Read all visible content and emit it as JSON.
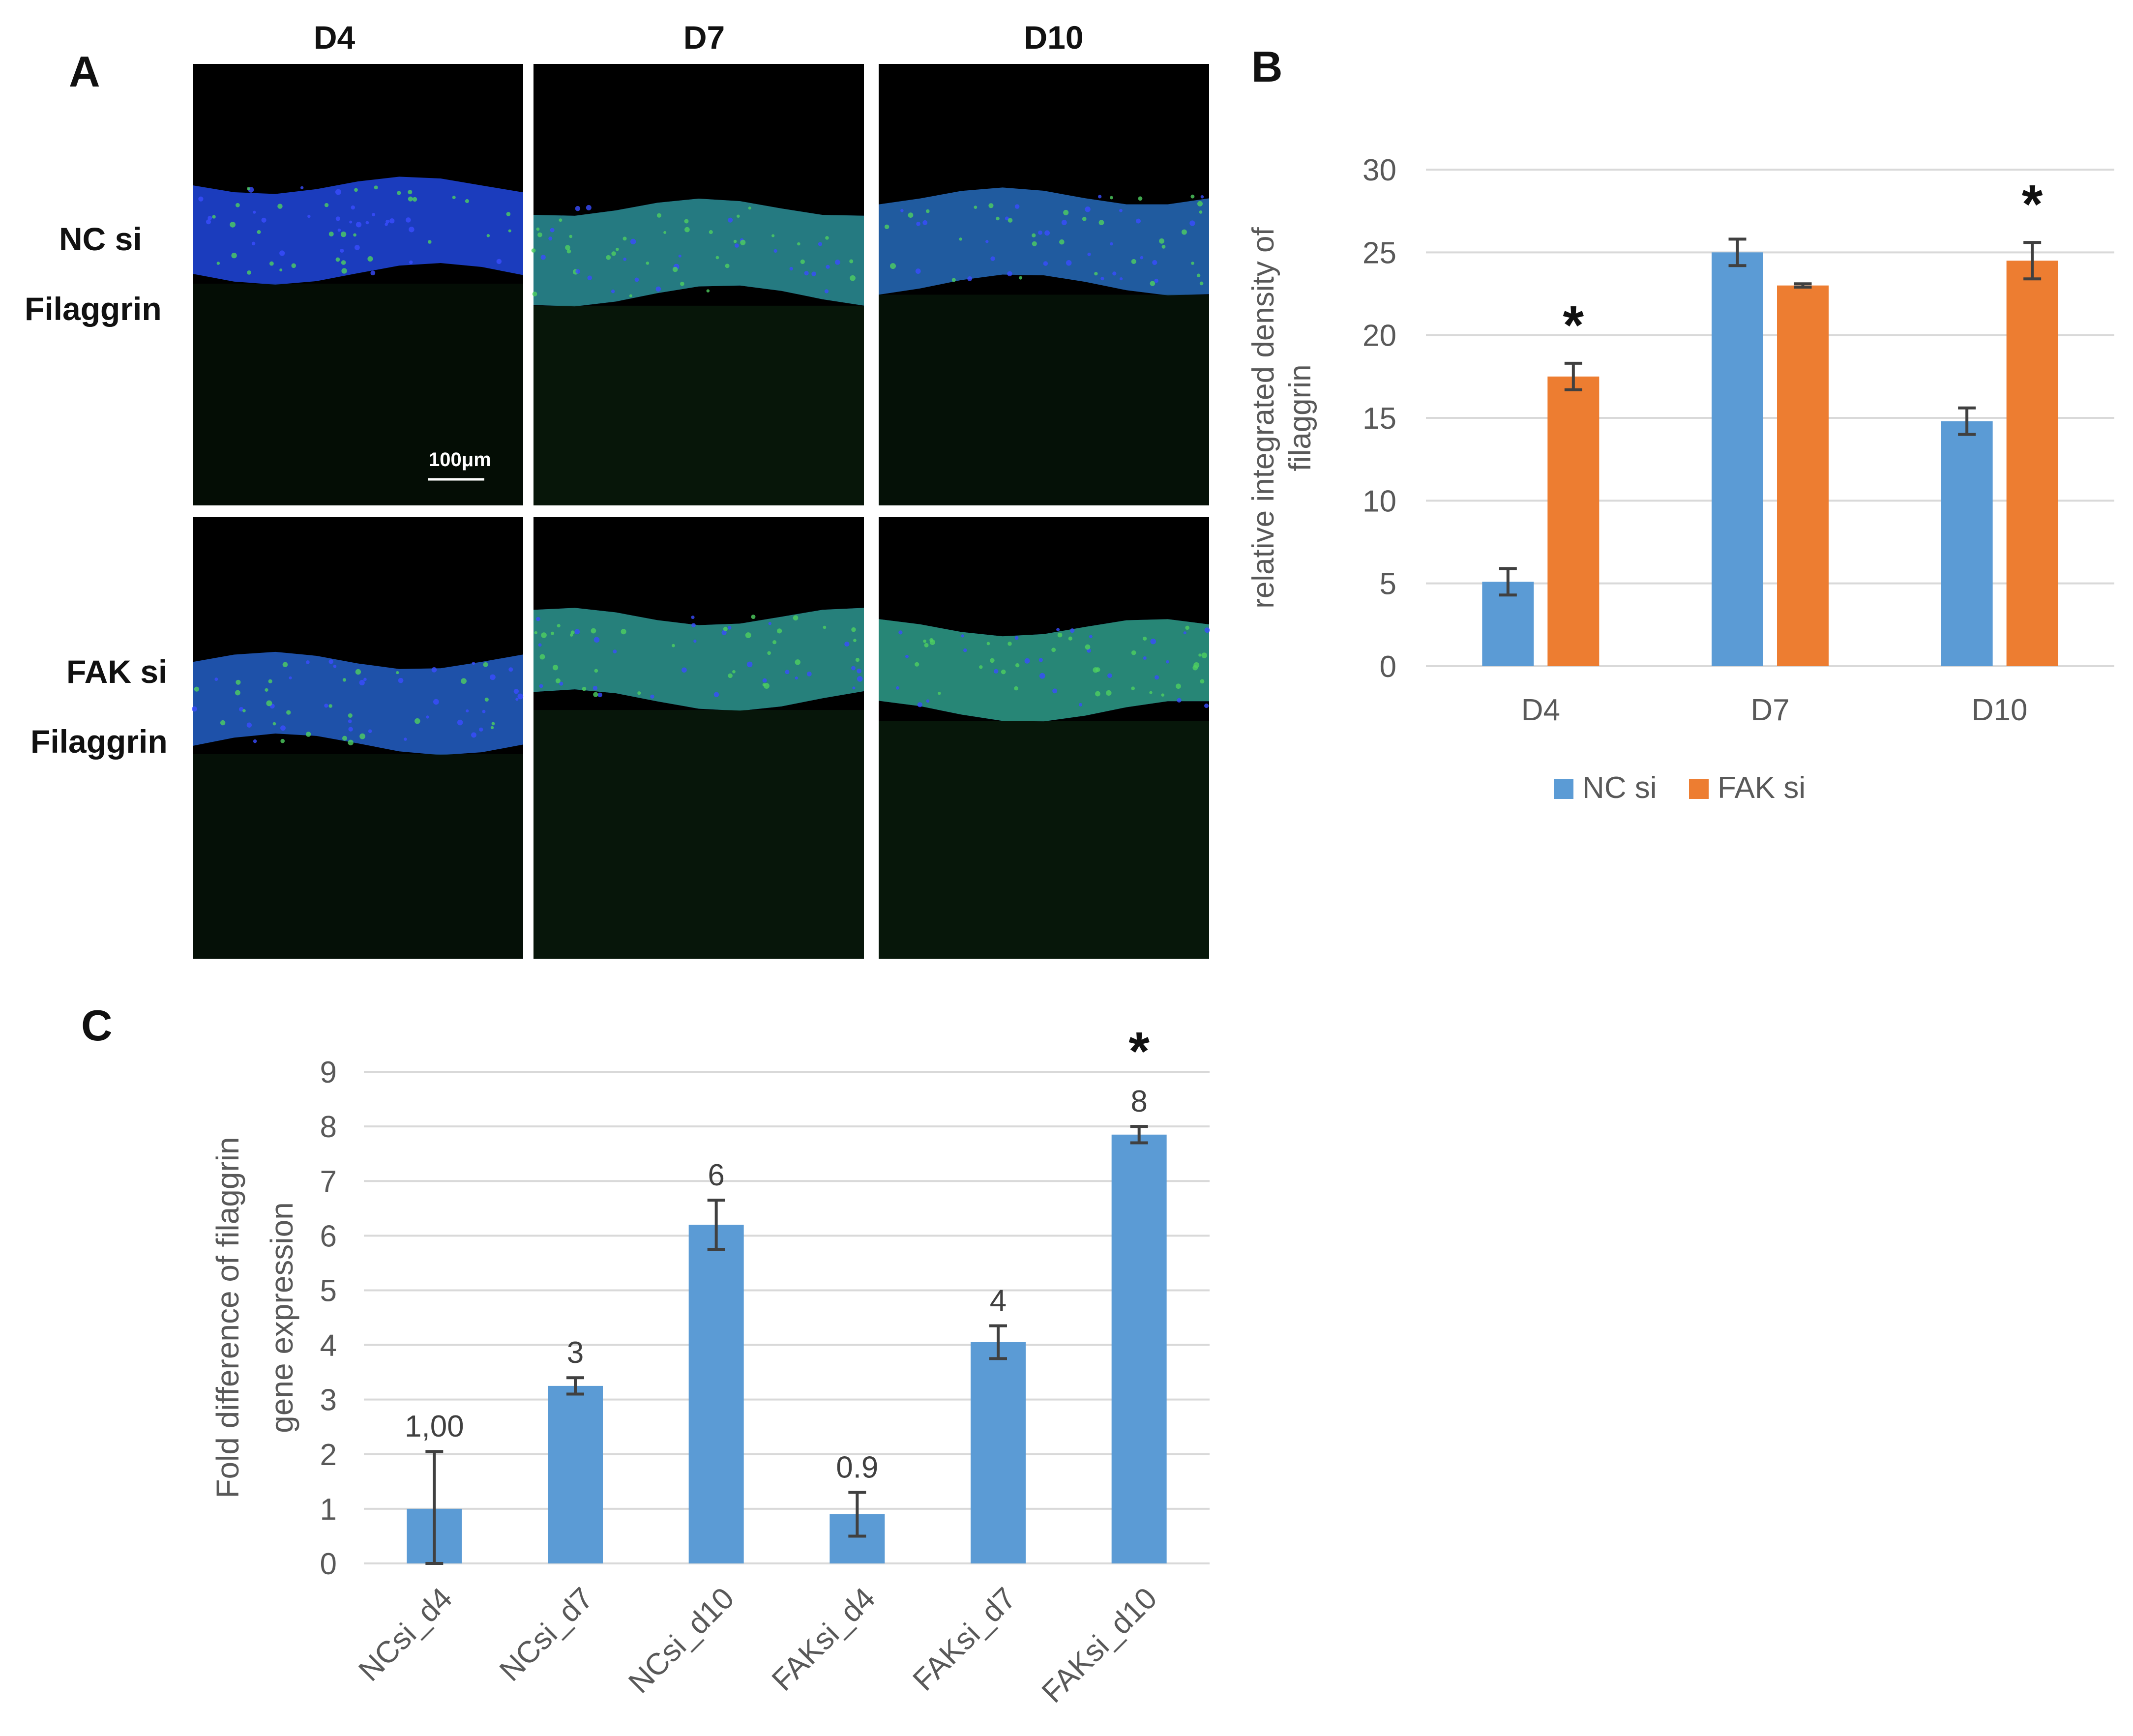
{
  "panel_a": {
    "letter": "A",
    "columns": [
      "D4",
      "D7",
      "D10"
    ],
    "rows": [
      {
        "line1": "NC si",
        "line2": "Filaggrin"
      },
      {
        "line1": "FAK si",
        "line2": "Filaggrin"
      }
    ],
    "scale_bar": "100μm",
    "images": [
      {
        "row": 0,
        "col": 0,
        "band_level": 0.45,
        "green_level": 0.15
      },
      {
        "row": 0,
        "col": 1,
        "band_level": 0.55,
        "green_level": 0.75
      },
      {
        "row": 0,
        "col": 2,
        "band_level": 0.5,
        "green_level": 0.45
      },
      {
        "row": 1,
        "col": 0,
        "band_level": 0.55,
        "green_level": 0.35
      },
      {
        "row": 1,
        "col": 1,
        "band_level": 0.35,
        "green_level": 0.8
      },
      {
        "row": 1,
        "col": 2,
        "band_level": 0.4,
        "green_level": 0.85
      }
    ]
  },
  "panel_b": {
    "letter": "B",
    "chart_data": {
      "type": "bar",
      "categories": [
        "D4",
        "D7",
        "D10"
      ],
      "series": [
        {
          "name": "NC si",
          "color": "#5B9BD5",
          "values": [
            5.1,
            25.0,
            14.8
          ],
          "errors": [
            0.8,
            0.8,
            0.8
          ]
        },
        {
          "name": "FAK si",
          "color": "#ED7D31",
          "values": [
            17.5,
            23.0,
            24.5
          ],
          "errors": [
            0.8,
            0.1,
            1.1
          ]
        }
      ],
      "ylabel_line1": "relative integrated density of",
      "ylabel_line2": "filaggrin",
      "xlabel": "",
      "ylim": [
        0,
        30
      ],
      "yticks": [
        "0",
        "5",
        "10",
        "15",
        "20",
        "25",
        "30"
      ],
      "grid": true,
      "legend": "bottom",
      "significance": [
        {
          "category": "D4",
          "series": "FAK si",
          "mark": "*"
        },
        {
          "category": "D10",
          "series": "FAK si",
          "mark": "*"
        }
      ]
    }
  },
  "panel_c": {
    "letter": "C",
    "chart_data": {
      "type": "bar",
      "categories": [
        "NCsi_d4",
        "NCsi_d7",
        "NCsi_d10",
        "FAKsi_d4",
        "FAKsi_d7",
        "FAKsi_d10"
      ],
      "series": [
        {
          "color": "#5B9BD5",
          "values": [
            1.0,
            3.25,
            6.2,
            0.9,
            4.05,
            7.85
          ],
          "errors": [
            1.05,
            0.15,
            0.45,
            0.4,
            0.3,
            0.15
          ]
        }
      ],
      "data_labels": [
        "1,00",
        "3",
        "6",
        "0.9",
        "4",
        "8"
      ],
      "ylabel_line1": "Fold difference of filaggrin",
      "ylabel_line2": "gene expression",
      "xlabel": "",
      "ylim": [
        0,
        9
      ],
      "yticks": [
        "0",
        "1",
        "2",
        "3",
        "4",
        "5",
        "6",
        "7",
        "8",
        "9"
      ],
      "grid": true,
      "significance": [
        {
          "category": "FAKsi_d10",
          "mark": "*"
        }
      ]
    }
  }
}
